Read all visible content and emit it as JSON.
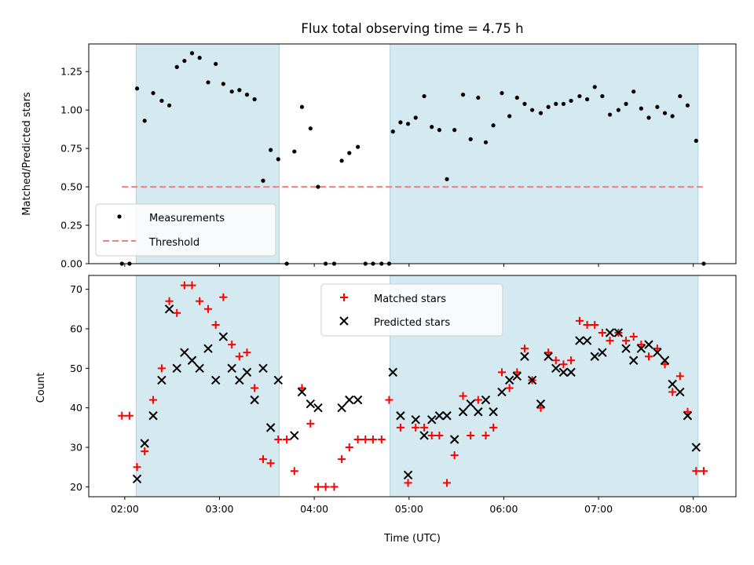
{
  "chart_data": [
    {
      "type": "scatter",
      "title": "Flux total observing time = 4.75 h",
      "xlabel": "",
      "ylabel": "Matched/Predicted stars",
      "ylim": [
        0,
        1.43
      ],
      "yticks": [
        "0.00",
        "0.25",
        "0.50",
        "0.75",
        "1.00",
        "1.25"
      ],
      "ytick_values": [
        0,
        0.25,
        0.5,
        0.75,
        1.0,
        1.25
      ],
      "x_unit": "hours_utc",
      "xlim": [
        1.62,
        8.45
      ],
      "shaded_intervals": [
        [
          2.12,
          3.63
        ],
        [
          4.8,
          8.05
        ]
      ],
      "shade_color": "#d4eaf0",
      "legend_position": "lower left",
      "legend": [
        "Measurements",
        "Threshold"
      ],
      "threshold": {
        "value": 0.5,
        "x_start": 1.97,
        "x_end": 8.1,
        "color": "#f08080"
      },
      "series": [
        {
          "name": "Measurements",
          "marker": "dot",
          "color": "#000000",
          "points": [
            [
              1.97,
              0.0
            ],
            [
              2.05,
              0.0
            ],
            [
              2.13,
              1.14
            ],
            [
              2.21,
              0.93
            ],
            [
              2.3,
              1.11
            ],
            [
              2.39,
              1.06
            ],
            [
              2.47,
              1.03
            ],
            [
              2.55,
              1.28
            ],
            [
              2.63,
              1.32
            ],
            [
              2.71,
              1.37
            ],
            [
              2.79,
              1.34
            ],
            [
              2.88,
              1.18
            ],
            [
              2.96,
              1.3
            ],
            [
              3.04,
              1.17
            ],
            [
              3.13,
              1.12
            ],
            [
              3.21,
              1.13
            ],
            [
              3.29,
              1.1
            ],
            [
              3.37,
              1.07
            ],
            [
              3.46,
              0.54
            ],
            [
              3.54,
              0.74
            ],
            [
              3.62,
              0.68
            ],
            [
              3.71,
              0.0
            ],
            [
              3.79,
              0.73
            ],
            [
              3.87,
              1.02
            ],
            [
              3.96,
              0.88
            ],
            [
              4.04,
              0.5
            ],
            [
              4.12,
              0.0
            ],
            [
              4.21,
              0.0
            ],
            [
              4.29,
              0.67
            ],
            [
              4.37,
              0.72
            ],
            [
              4.46,
              0.76
            ],
            [
              4.54,
              0.0
            ],
            [
              4.62,
              0.0
            ],
            [
              4.71,
              0.0
            ],
            [
              4.79,
              0.0
            ],
            [
              4.83,
              0.86
            ],
            [
              4.91,
              0.92
            ],
            [
              4.99,
              0.91
            ],
            [
              5.07,
              0.95
            ],
            [
              5.16,
              1.09
            ],
            [
              5.24,
              0.89
            ],
            [
              5.32,
              0.87
            ],
            [
              5.4,
              0.55
            ],
            [
              5.48,
              0.87
            ],
            [
              5.57,
              1.1
            ],
            [
              5.65,
              0.81
            ],
            [
              5.73,
              1.08
            ],
            [
              5.81,
              0.79
            ],
            [
              5.89,
              0.9
            ],
            [
              5.98,
              1.11
            ],
            [
              6.06,
              0.96
            ],
            [
              6.14,
              1.08
            ],
            [
              6.22,
              1.04
            ],
            [
              6.3,
              1.0
            ],
            [
              6.39,
              0.98
            ],
            [
              6.47,
              1.02
            ],
            [
              6.55,
              1.04
            ],
            [
              6.63,
              1.04
            ],
            [
              6.71,
              1.06
            ],
            [
              6.8,
              1.09
            ],
            [
              6.88,
              1.07
            ],
            [
              6.96,
              1.15
            ],
            [
              7.04,
              1.09
            ],
            [
              7.12,
              0.97
            ],
            [
              7.21,
              1.0
            ],
            [
              7.29,
              1.04
            ],
            [
              7.37,
              1.12
            ],
            [
              7.45,
              1.01
            ],
            [
              7.53,
              0.95
            ],
            [
              7.62,
              1.02
            ],
            [
              7.7,
              0.98
            ],
            [
              7.78,
              0.96
            ],
            [
              7.86,
              1.09
            ],
            [
              7.94,
              1.03
            ],
            [
              8.03,
              0.8
            ],
            [
              8.11,
              0.0
            ]
          ]
        }
      ]
    },
    {
      "type": "scatter",
      "title": "",
      "xlabel": "Time (UTC)",
      "ylabel": "Count",
      "ylim": [
        17.5,
        73.5
      ],
      "yticks": [
        "20",
        "30",
        "40",
        "50",
        "60",
        "70"
      ],
      "ytick_values": [
        20,
        30,
        40,
        50,
        60,
        70
      ],
      "xticks": [
        "02:00",
        "03:00",
        "04:00",
        "05:00",
        "06:00",
        "07:00",
        "08:00"
      ],
      "xtick_values": [
        2,
        3,
        4,
        5,
        6,
        7,
        8
      ],
      "x_unit": "hours_utc",
      "xlim": [
        1.62,
        8.45
      ],
      "shaded_intervals": [
        [
          2.12,
          3.63
        ],
        [
          4.8,
          8.05
        ]
      ],
      "shade_color": "#d4eaf0",
      "legend_position": "top center",
      "legend": [
        "Matched stars",
        "Predicted stars"
      ],
      "series": [
        {
          "name": "Matched stars",
          "marker": "plus",
          "color": "#ff0000",
          "points": [
            [
              1.97,
              38
            ],
            [
              2.05,
              38
            ],
            [
              2.13,
              25
            ],
            [
              2.21,
              29
            ],
            [
              2.3,
              42
            ],
            [
              2.39,
              50
            ],
            [
              2.47,
              67
            ],
            [
              2.55,
              64
            ],
            [
              2.63,
              71
            ],
            [
              2.71,
              71
            ],
            [
              2.79,
              67
            ],
            [
              2.88,
              65
            ],
            [
              2.96,
              61
            ],
            [
              3.04,
              68
            ],
            [
              3.13,
              56
            ],
            [
              3.21,
              53
            ],
            [
              3.29,
              54
            ],
            [
              3.37,
              45
            ],
            [
              3.46,
              27
            ],
            [
              3.54,
              26
            ],
            [
              3.62,
              32
            ],
            [
              3.71,
              32
            ],
            [
              3.79,
              24
            ],
            [
              3.87,
              45
            ],
            [
              3.96,
              36
            ],
            [
              4.04,
              20
            ],
            [
              4.12,
              20
            ],
            [
              4.21,
              20
            ],
            [
              4.29,
              27
            ],
            [
              4.37,
              30
            ],
            [
              4.46,
              32
            ],
            [
              4.54,
              32
            ],
            [
              4.62,
              32
            ],
            [
              4.71,
              32
            ],
            [
              4.79,
              42
            ],
            [
              4.91,
              35
            ],
            [
              4.99,
              21
            ],
            [
              5.07,
              35
            ],
            [
              5.16,
              35
            ],
            [
              5.24,
              33
            ],
            [
              5.32,
              33
            ],
            [
              5.4,
              21
            ],
            [
              5.48,
              28
            ],
            [
              5.57,
              43
            ],
            [
              5.65,
              33
            ],
            [
              5.73,
              42
            ],
            [
              5.81,
              33
            ],
            [
              5.89,
              35
            ],
            [
              5.98,
              49
            ],
            [
              6.06,
              45
            ],
            [
              6.14,
              49
            ],
            [
              6.22,
              55
            ],
            [
              6.3,
              47
            ],
            [
              6.39,
              40
            ],
            [
              6.47,
              54
            ],
            [
              6.55,
              52
            ],
            [
              6.63,
              51
            ],
            [
              6.71,
              52
            ],
            [
              6.8,
              62
            ],
            [
              6.88,
              61
            ],
            [
              6.96,
              61
            ],
            [
              7.04,
              59
            ],
            [
              7.12,
              57
            ],
            [
              7.21,
              59
            ],
            [
              7.29,
              57
            ],
            [
              7.37,
              58
            ],
            [
              7.45,
              56
            ],
            [
              7.53,
              53
            ],
            [
              7.62,
              55
            ],
            [
              7.7,
              51
            ],
            [
              7.78,
              44
            ],
            [
              7.86,
              48
            ],
            [
              7.94,
              39
            ],
            [
              8.03,
              24
            ],
            [
              8.11,
              24
            ]
          ]
        },
        {
          "name": "Predicted stars",
          "marker": "x",
          "color": "#000000",
          "points": [
            [
              2.13,
              22
            ],
            [
              2.21,
              31
            ],
            [
              2.3,
              38
            ],
            [
              2.39,
              47
            ],
            [
              2.47,
              65
            ],
            [
              2.55,
              50
            ],
            [
              2.63,
              54
            ],
            [
              2.71,
              52
            ],
            [
              2.79,
              50
            ],
            [
              2.88,
              55
            ],
            [
              2.96,
              47
            ],
            [
              3.04,
              58
            ],
            [
              3.13,
              50
            ],
            [
              3.21,
              47
            ],
            [
              3.29,
              49
            ],
            [
              3.37,
              42
            ],
            [
              3.46,
              50
            ],
            [
              3.54,
              35
            ],
            [
              3.62,
              47
            ],
            [
              3.79,
              33
            ],
            [
              3.87,
              44
            ],
            [
              3.96,
              41
            ],
            [
              4.04,
              40
            ],
            [
              4.29,
              40
            ],
            [
              4.37,
              42
            ],
            [
              4.46,
              42
            ],
            [
              4.83,
              49
            ],
            [
              4.91,
              38
            ],
            [
              4.99,
              23
            ],
            [
              5.07,
              37
            ],
            [
              5.16,
              33
            ],
            [
              5.24,
              37
            ],
            [
              5.32,
              38
            ],
            [
              5.4,
              38
            ],
            [
              5.48,
              32
            ],
            [
              5.57,
              39
            ],
            [
              5.65,
              41
            ],
            [
              5.73,
              39
            ],
            [
              5.81,
              42
            ],
            [
              5.89,
              39
            ],
            [
              5.98,
              44
            ],
            [
              6.06,
              47
            ],
            [
              6.14,
              48
            ],
            [
              6.22,
              53
            ],
            [
              6.3,
              47
            ],
            [
              6.39,
              41
            ],
            [
              6.47,
              53
            ],
            [
              6.55,
              50
            ],
            [
              6.63,
              49
            ],
            [
              6.71,
              49
            ],
            [
              6.8,
              57
            ],
            [
              6.88,
              57
            ],
            [
              6.96,
              53
            ],
            [
              7.04,
              54
            ],
            [
              7.12,
              59
            ],
            [
              7.21,
              59
            ],
            [
              7.29,
              55
            ],
            [
              7.37,
              52
            ],
            [
              7.45,
              55
            ],
            [
              7.53,
              56
            ],
            [
              7.62,
              54
            ],
            [
              7.7,
              52
            ],
            [
              7.78,
              46
            ],
            [
              7.86,
              44
            ],
            [
              7.94,
              38
            ],
            [
              8.03,
              30
            ]
          ]
        }
      ]
    }
  ]
}
